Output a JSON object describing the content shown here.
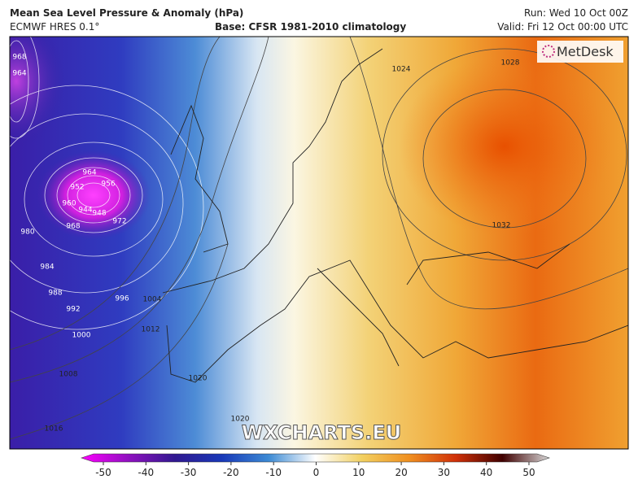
{
  "header": {
    "title": "Mean Sea Level Pressure & Anomaly (hPa)",
    "model": "ECMWF HRES 0.1°",
    "base": "Base: CFSR 1981-2010 climatology",
    "run": "Run: Wed 10 Oct 00Z",
    "valid": "Valid: Fri 12 Oct 00:00 UTC"
  },
  "logo": "MetDesk",
  "watermark": "WXCHARTS.EU",
  "isobars": [
    968,
    964,
    964,
    952,
    956,
    960,
    944,
    948,
    968,
    972,
    980,
    984,
    988,
    992,
    996,
    1000,
    1004,
    1008,
    1012,
    1016,
    1020,
    1020,
    1024,
    1028,
    1032
  ],
  "colorbar": {
    "ticks": [
      -50,
      -40,
      -30,
      -20,
      -10,
      0,
      10,
      20,
      30,
      40,
      50
    ]
  }
}
